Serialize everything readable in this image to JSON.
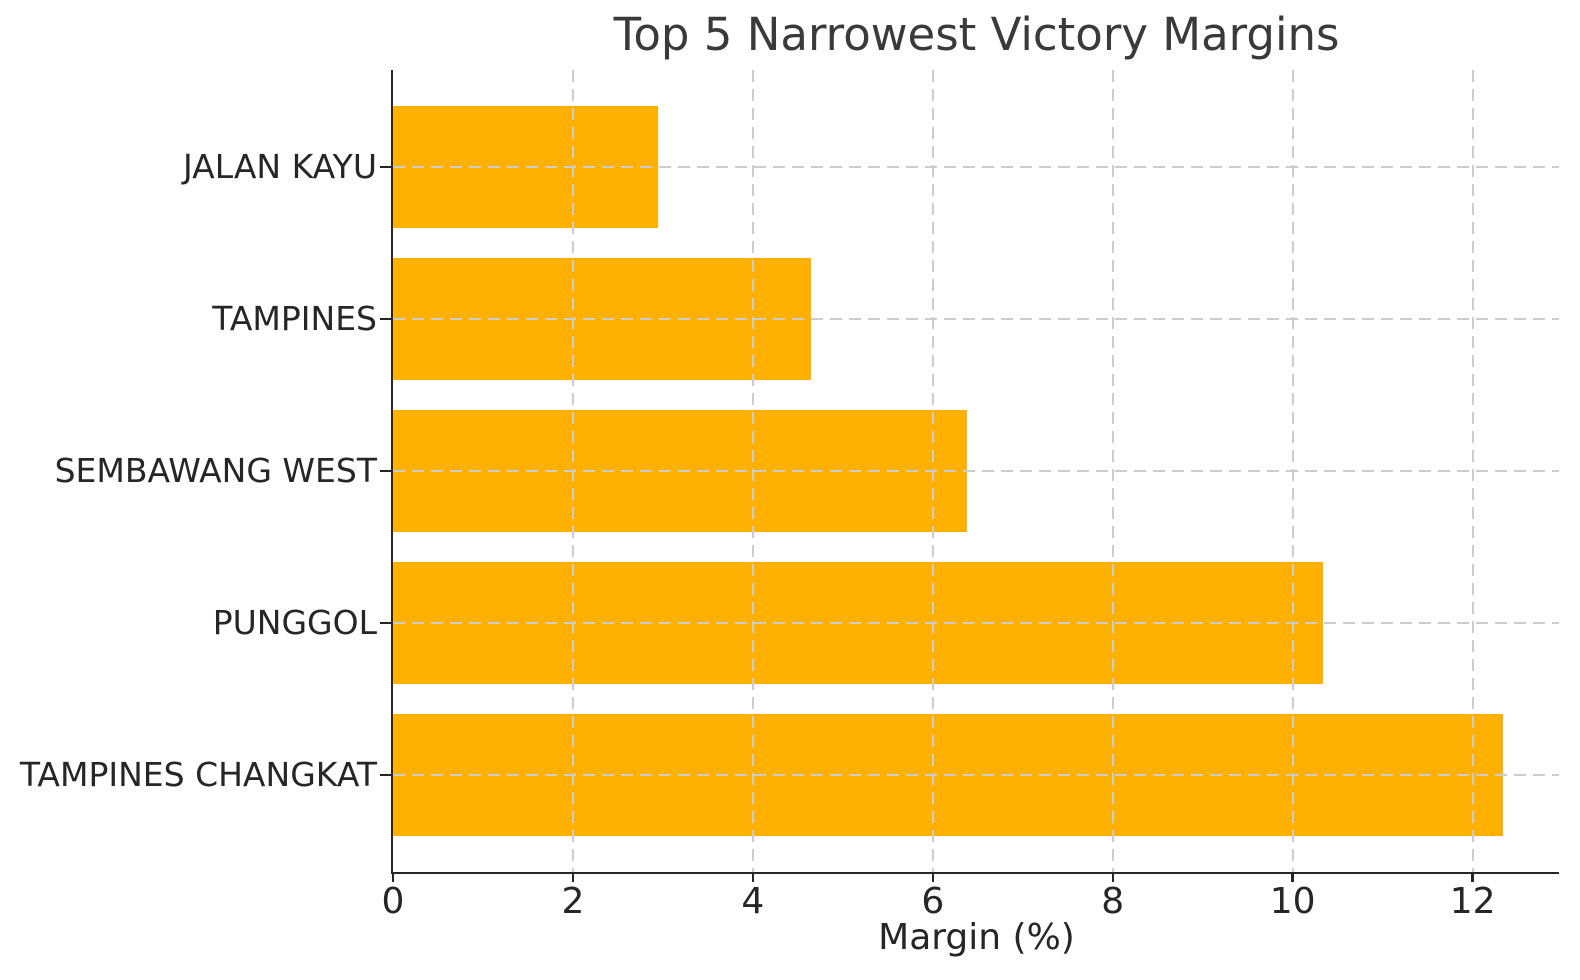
{
  "chart_data": {
    "type": "bar",
    "orientation": "horizontal",
    "title": "Top 5 Narrowest Victory Margins",
    "xlabel": "Margin (%)",
    "ylabel": "",
    "categories": [
      "JALAN KAYU",
      "TAMPINES",
      "SEMBAWANG WEST",
      "PUNGGOL",
      "TAMPINES CHANGKAT"
    ],
    "values": [
      2.94,
      4.65,
      6.38,
      10.34,
      12.34
    ],
    "xticks": [
      0,
      2,
      4,
      6,
      8,
      10,
      12
    ],
    "xtick_labels": [
      "0",
      "2",
      "4",
      "6",
      "8",
      "10",
      "12"
    ],
    "xlim": [
      0,
      12.96
    ],
    "grid": true,
    "grid_style": "dashed",
    "legend_position": "none",
    "colors": {
      "bar": "#FFB000",
      "grid": "#CCCCCC",
      "spine": "#262626",
      "tick_label": "#262626",
      "title": "#3A3A3A",
      "background": "#FFFFFF"
    }
  }
}
